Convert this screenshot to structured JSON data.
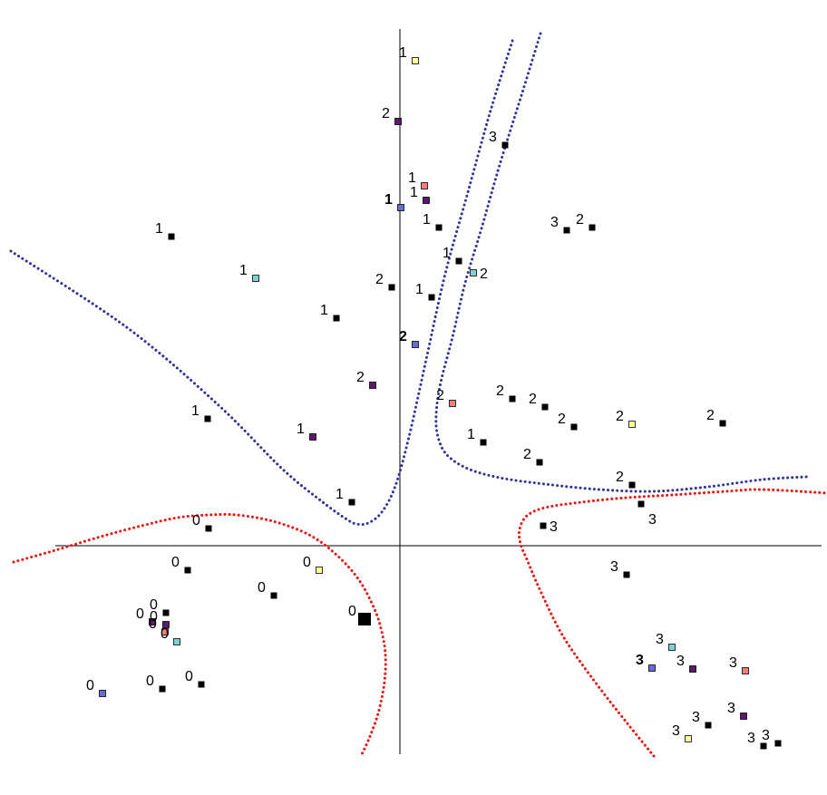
{
  "chart_data": {
    "type": "scatter",
    "title": "",
    "xlabel": "",
    "ylabel": "",
    "xlim": [
      -380,
      465
    ],
    "ylim": [
      -232,
      565
    ],
    "grid": false,
    "axes": "crossing-at-origin",
    "marker_colors": {
      "black": "#000000",
      "blue": "#6b6bd6",
      "purple": "#5a1a6a",
      "salmon": "#f08080",
      "yellow": "#ffffa0",
      "cyan": "#80d0d0"
    },
    "boundary_colors": {
      "blue": "#333399",
      "red": "#ee1111"
    },
    "points": [
      {
        "x": 17,
        "y": 535,
        "label": "1",
        "color": "yellow"
      },
      {
        "x": -2,
        "y": 468,
        "label": "2",
        "color": "purple"
      },
      {
        "x": 116,
        "y": 442,
        "label": "3",
        "color": "black"
      },
      {
        "x": 27,
        "y": 397,
        "label": "1",
        "color": "salmon"
      },
      {
        "x": 29,
        "y": 381,
        "label": "1",
        "color": "purple"
      },
      {
        "x": 1,
        "y": 373,
        "label": "1",
        "color": "blue",
        "bold": true
      },
      {
        "x": 43,
        "y": 351,
        "label": "1",
        "color": "black"
      },
      {
        "x": 184,
        "y": 348,
        "label": "3",
        "color": "black"
      },
      {
        "x": 212,
        "y": 351,
        "label": "2",
        "color": "black"
      },
      {
        "x": -252,
        "y": 341,
        "label": "1",
        "color": "black"
      },
      {
        "x": 65,
        "y": 314,
        "label": "1",
        "color": "black"
      },
      {
        "x": 81,
        "y": 301,
        "label": "2",
        "color": "cyan",
        "label_side": "right"
      },
      {
        "x": -159,
        "y": 295,
        "label": "1",
        "color": "cyan"
      },
      {
        "x": -9,
        "y": 285,
        "label": "2",
        "color": "black"
      },
      {
        "x": 35,
        "y": 274,
        "label": "1",
        "color": "black"
      },
      {
        "x": -70,
        "y": 251,
        "label": "1",
        "color": "black"
      },
      {
        "x": 17,
        "y": 222,
        "label": "2",
        "color": "blue",
        "bold": true
      },
      {
        "x": -30,
        "y": 177,
        "label": "2",
        "color": "purple"
      },
      {
        "x": 58,
        "y": 157,
        "label": "2",
        "color": "salmon"
      },
      {
        "x": 124,
        "y": 162,
        "label": "2",
        "color": "black"
      },
      {
        "x": 160,
        "y": 153,
        "label": "2",
        "color": "black"
      },
      {
        "x": 192,
        "y": 131,
        "label": "2",
        "color": "black"
      },
      {
        "x": 256,
        "y": 134,
        "label": "2",
        "color": "yellow"
      },
      {
        "x": 356,
        "y": 135,
        "label": "2",
        "color": "black"
      },
      {
        "x": -212,
        "y": 140,
        "label": "1",
        "color": "black"
      },
      {
        "x": -96,
        "y": 120,
        "label": "1",
        "color": "purple"
      },
      {
        "x": 92,
        "y": 114,
        "label": "1",
        "color": "black"
      },
      {
        "x": 154,
        "y": 92,
        "label": "2",
        "color": "black"
      },
      {
        "x": 256,
        "y": 67,
        "label": "2",
        "color": "black"
      },
      {
        "x": -53,
        "y": 48,
        "label": "1",
        "color": "black"
      },
      {
        "x": 266,
        "y": 46,
        "label": "3",
        "color": "black",
        "label_side": "right-below"
      },
      {
        "x": -211,
        "y": 19,
        "label": "0",
        "color": "black"
      },
      {
        "x": 158,
        "y": 22,
        "label": "3",
        "color": "black",
        "label_side": "right"
      },
      {
        "x": -234,
        "y": -27,
        "label": "0",
        "color": "black"
      },
      {
        "x": -89,
        "y": -27,
        "label": "0",
        "color": "yellow"
      },
      {
        "x": 250,
        "y": -32,
        "label": "3",
        "color": "black"
      },
      {
        "x": -139,
        "y": -55,
        "label": "0",
        "color": "black"
      },
      {
        "x": -258,
        "y": -74,
        "label": "0",
        "color": "black"
      },
      {
        "x": -273,
        "y": -84,
        "label": "0",
        "color": "purple"
      },
      {
        "x": -258,
        "y": -87,
        "label": "0",
        "color": "purple"
      },
      {
        "x": -259,
        "y": -95,
        "label": "0",
        "color": "salmon"
      },
      {
        "x": -39,
        "y": -81,
        "label": "0",
        "color": "black",
        "size": "large"
      },
      {
        "x": -246,
        "y": -106,
        "label": "0",
        "color": "cyan"
      },
      {
        "x": 300,
        "y": -112,
        "label": "3",
        "color": "cyan"
      },
      {
        "x": 278,
        "y": -135,
        "label": "3",
        "color": "blue",
        "bold": true
      },
      {
        "x": 323,
        "y": -136,
        "label": "3",
        "color": "purple"
      },
      {
        "x": 381,
        "y": -138,
        "label": "3",
        "color": "salmon"
      },
      {
        "x": -328,
        "y": -163,
        "label": "0",
        "color": "blue"
      },
      {
        "x": -262,
        "y": -158,
        "label": "0",
        "color": "black"
      },
      {
        "x": -219,
        "y": -153,
        "label": "0",
        "color": "black"
      },
      {
        "x": 379,
        "y": -188,
        "label": "3",
        "color": "purple"
      },
      {
        "x": 340,
        "y": -198,
        "label": "3",
        "color": "black"
      },
      {
        "x": 318,
        "y": -213,
        "label": "3",
        "color": "yellow"
      },
      {
        "x": 417,
        "y": -218,
        "label": "3",
        "color": "black"
      },
      {
        "x": 401,
        "y": -221,
        "label": "3",
        "color": "black"
      }
    ],
    "boundaries": [
      {
        "name": "",
        "color": "blue",
        "points": [
          [
            -429,
            325
          ],
          [
            -300,
            240
          ],
          [
            -200,
            155
          ],
          [
            -130,
            85
          ],
          [
            -85,
            48
          ],
          [
            -60,
            30
          ],
          [
            -48,
            24
          ],
          [
            -35,
            25
          ],
          [
            -20,
            37
          ],
          [
            -5,
            66
          ],
          [
            10,
            120
          ],
          [
            30,
            210
          ],
          [
            50,
            300
          ],
          [
            75,
            390
          ],
          [
            100,
            480
          ],
          [
            125,
            560
          ]
        ]
      },
      {
        "name": "",
        "color": "blue",
        "points": [
          [
            155,
            565
          ],
          [
            135,
            500
          ],
          [
            110,
            420
          ],
          [
            90,
            350
          ],
          [
            72,
            290
          ],
          [
            58,
            230
          ],
          [
            45,
            180
          ],
          [
            40,
            145
          ],
          [
            42,
            120
          ],
          [
            52,
            100
          ],
          [
            75,
            85
          ],
          [
            110,
            75
          ],
          [
            160,
            68
          ],
          [
            220,
            62
          ],
          [
            280,
            60
          ],
          [
            340,
            65
          ],
          [
            400,
            73
          ],
          [
            449,
            76
          ]
        ]
      },
      {
        "name": "",
        "color": "red",
        "points": [
          [
            -426,
            -18
          ],
          [
            -380,
            -5
          ],
          [
            -330,
            10
          ],
          [
            -285,
            22
          ],
          [
            -245,
            31
          ],
          [
            -210,
            34
          ],
          [
            -180,
            34
          ],
          [
            -140,
            27
          ],
          [
            -100,
            12
          ],
          [
            -70,
            -10
          ],
          [
            -45,
            -38
          ],
          [
            -28,
            -70
          ],
          [
            -20,
            -95
          ],
          [
            -16,
            -120
          ],
          [
            -17,
            -150
          ],
          [
            -24,
            -185
          ],
          [
            -35,
            -215
          ],
          [
            -43,
            -232
          ]
        ]
      },
      {
        "name": "",
        "color": "red",
        "points": [
          [
            280,
            -232
          ],
          [
            250,
            -195
          ],
          [
            215,
            -150
          ],
          [
            180,
            -100
          ],
          [
            155,
            -50
          ],
          [
            140,
            -15
          ],
          [
            133,
            2
          ],
          [
            132,
            18
          ],
          [
            140,
            33
          ],
          [
            160,
            42
          ],
          [
            200,
            48
          ],
          [
            250,
            53
          ],
          [
            300,
            56
          ],
          [
            360,
            60
          ],
          [
            400,
            62
          ],
          [
            472,
            58
          ]
        ]
      }
    ]
  }
}
